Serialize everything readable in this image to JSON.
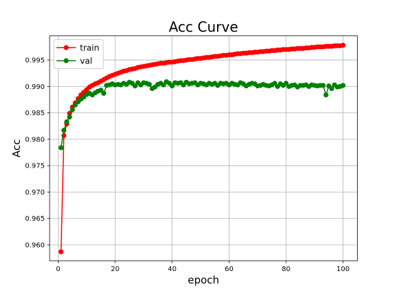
{
  "chart_data": {
    "type": "line",
    "title": "Acc Curve",
    "xlabel": "epoch",
    "ylabel": "Acc",
    "xlim": [
      -3,
      105
    ],
    "ylim": [
      0.957,
      0.9996
    ],
    "xticks": [
      0,
      20,
      40,
      60,
      80,
      100
    ],
    "yticks": [
      0.96,
      0.965,
      0.97,
      0.975,
      0.98,
      0.985,
      0.99,
      0.995
    ],
    "ytick_labels": [
      "0.960",
      "0.965",
      "0.970",
      "0.975",
      "0.980",
      "0.985",
      "0.990",
      "0.995"
    ],
    "grid": true,
    "legend_position": "top-left",
    "x": [
      1,
      2,
      3,
      4,
      5,
      6,
      7,
      8,
      9,
      10,
      11,
      12,
      13,
      14,
      15,
      16,
      17,
      18,
      19,
      20,
      21,
      22,
      23,
      24,
      25,
      26,
      27,
      28,
      29,
      30,
      31,
      32,
      33,
      34,
      35,
      36,
      37,
      38,
      39,
      40,
      41,
      42,
      43,
      44,
      45,
      46,
      47,
      48,
      49,
      50,
      51,
      52,
      53,
      54,
      55,
      56,
      57,
      58,
      59,
      60,
      61,
      62,
      63,
      64,
      65,
      66,
      67,
      68,
      69,
      70,
      71,
      72,
      73,
      74,
      75,
      76,
      77,
      78,
      79,
      80,
      81,
      82,
      83,
      84,
      85,
      86,
      87,
      88,
      89,
      90,
      91,
      92,
      93,
      94,
      95,
      96,
      97,
      98,
      99,
      100
    ],
    "series": [
      {
        "name": "train",
        "color": "#ff0000",
        "values": [
          0.9587,
          0.9807,
          0.9829,
          0.9849,
          0.9861,
          0.9869,
          0.9877,
          0.9884,
          0.9889,
          0.9894,
          0.9899,
          0.9902,
          0.9905,
          0.9907,
          0.991,
          0.9913,
          0.9916,
          0.9919,
          0.9921,
          0.9923,
          0.9925,
          0.9927,
          0.9929,
          0.993,
          0.9932,
          0.9933,
          0.9934,
          0.9936,
          0.9937,
          0.9938,
          0.9939,
          0.994,
          0.9941,
          0.9942,
          0.9943,
          0.9944,
          0.9944,
          0.9945,
          0.9946,
          0.9946,
          0.9947,
          0.9948,
          0.9949,
          0.9949,
          0.995,
          0.9951,
          0.9951,
          0.9952,
          0.9953,
          0.9953,
          0.9954,
          0.9955,
          0.9955,
          0.9956,
          0.9957,
          0.9957,
          0.9958,
          0.9959,
          0.9959,
          0.996,
          0.996,
          0.9961,
          0.9962,
          0.9962,
          0.9963,
          0.9963,
          0.9964,
          0.9964,
          0.9965,
          0.9965,
          0.9966,
          0.9966,
          0.9967,
          0.9967,
          0.9968,
          0.9968,
          0.9969,
          0.9969,
          0.997,
          0.997,
          0.997,
          0.9971,
          0.9971,
          0.9972,
          0.9972,
          0.9972,
          0.9973,
          0.9973,
          0.9974,
          0.9974,
          0.9975,
          0.9975,
          0.9975,
          0.9976,
          0.9976,
          0.9976,
          0.9977,
          0.9977,
          0.9977,
          0.9978
        ]
      },
      {
        "name": "val",
        "color": "#008000",
        "values": [
          0.9784,
          0.9817,
          0.9833,
          0.9842,
          0.9856,
          0.9865,
          0.9871,
          0.9876,
          0.988,
          0.9885,
          0.9887,
          0.9884,
          0.9888,
          0.9891,
          0.9893,
          0.9887,
          0.9902,
          0.9903,
          0.9905,
          0.9903,
          0.9904,
          0.9903,
          0.9906,
          0.9904,
          0.9908,
          0.9906,
          0.9901,
          0.9907,
          0.9903,
          0.9907,
          0.9906,
          0.9904,
          0.9896,
          0.9899,
          0.9904,
          0.9906,
          0.9903,
          0.9909,
          0.9906,
          0.9901,
          0.9907,
          0.9906,
          0.9907,
          0.9903,
          0.9908,
          0.9905,
          0.9906,
          0.9907,
          0.9903,
          0.9906,
          0.9905,
          0.9903,
          0.9906,
          0.9904,
          0.9906,
          0.9902,
          0.9906,
          0.9905,
          0.9906,
          0.9903,
          0.9906,
          0.9904,
          0.9903,
          0.9907,
          0.9905,
          0.9901,
          0.9904,
          0.9906,
          0.9905,
          0.9901,
          0.9902,
          0.9904,
          0.9902,
          0.9901,
          0.9903,
          0.9906,
          0.99,
          0.9905,
          0.9902,
          0.9906,
          0.99,
          0.9902,
          0.9903,
          0.9899,
          0.9902,
          0.9902,
          0.9903,
          0.99,
          0.9903,
          0.9902,
          0.9901,
          0.9902,
          0.9902,
          0.9884,
          0.9901,
          0.9896,
          0.9903,
          0.9899,
          0.99,
          0.9902
        ]
      }
    ]
  }
}
